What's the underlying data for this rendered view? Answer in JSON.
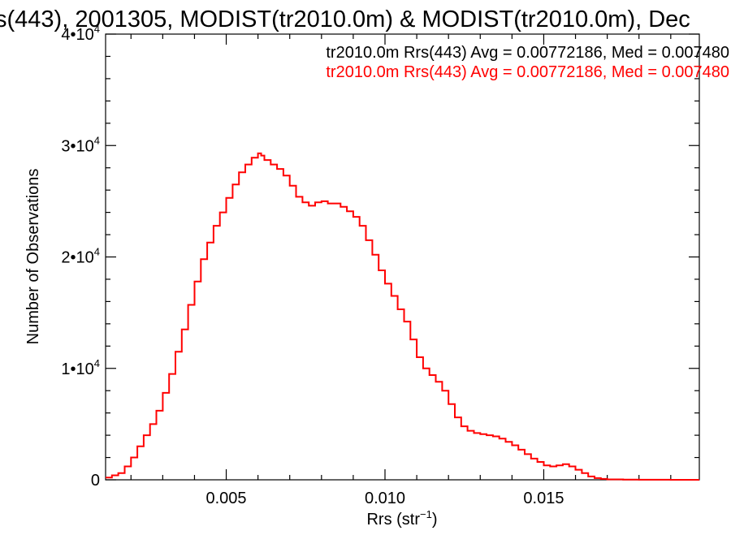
{
  "chart_data": {
    "type": "line",
    "style": "histogram-step",
    "title": "s(443), 2001305, MODIST(tr2010.0m) & MODIST(tr2010.0m), Dec",
    "xlabel": {
      "base": "Rrs (str",
      "sup": "−1",
      "end": ")"
    },
    "ylabel": "Number of Observations",
    "xlim": [
      0.0012,
      0.0199
    ],
    "ylim": [
      0,
      40000
    ],
    "x_ticks": [
      {
        "value": 0.005,
        "label": "0.005"
      },
      {
        "value": 0.01,
        "label": "0.010"
      },
      {
        "value": 0.015,
        "label": "0.015"
      }
    ],
    "y_ticks": [
      {
        "value": 0,
        "mant": "0",
        "exp": ""
      },
      {
        "value": 10000,
        "mant": "1•10",
        "exp": "4"
      },
      {
        "value": 20000,
        "mant": "2•10",
        "exp": "4"
      },
      {
        "value": 30000,
        "mant": "3•10",
        "exp": "4"
      },
      {
        "value": 40000,
        "mant": "4•10",
        "exp": "4"
      }
    ],
    "grid": false,
    "legend": [
      {
        "text": "tr2010.0m Rrs(443) Avg = 0.00772186, Med = 0.007480",
        "color": "#000000"
      },
      {
        "text": "tr2010.0m Rrs(443) Avg = 0.00772186, Med = 0.007480",
        "color": "#ff0000"
      }
    ],
    "legend_position": "top-right",
    "series": [
      {
        "color": "#ff0000",
        "x": [
          0.0012,
          0.0014,
          0.0016,
          0.0018,
          0.002,
          0.0022,
          0.0024,
          0.0026,
          0.0028,
          0.003,
          0.0032,
          0.0034,
          0.0036,
          0.0038,
          0.004,
          0.0042,
          0.0044,
          0.0046,
          0.0048,
          0.005,
          0.0052,
          0.0054,
          0.0056,
          0.0058,
          0.006,
          0.0061,
          0.0062,
          0.0064,
          0.0066,
          0.0068,
          0.007,
          0.0072,
          0.0074,
          0.0076,
          0.0078,
          0.008,
          0.0082,
          0.0084,
          0.0086,
          0.0088,
          0.009,
          0.0092,
          0.0094,
          0.0096,
          0.0098,
          0.01,
          0.0102,
          0.0104,
          0.0106,
          0.0108,
          0.011,
          0.0112,
          0.0114,
          0.0116,
          0.0118,
          0.012,
          0.0122,
          0.0124,
          0.0126,
          0.0128,
          0.013,
          0.0132,
          0.0134,
          0.0136,
          0.0138,
          0.014,
          0.0142,
          0.0144,
          0.0146,
          0.0148,
          0.015,
          0.0152,
          0.0154,
          0.0156,
          0.0158,
          0.016,
          0.0162,
          0.0164,
          0.0166,
          0.0168,
          0.017,
          0.0175,
          0.018,
          0.0185,
          0.019,
          0.0195,
          0.0199
        ],
        "y": [
          200,
          400,
          600,
          1200,
          2000,
          3000,
          4000,
          5000,
          6200,
          7800,
          9500,
          11500,
          13500,
          15700,
          17800,
          19800,
          21300,
          22800,
          24000,
          25300,
          26500,
          27600,
          28300,
          28900,
          29300,
          29100,
          28700,
          28300,
          27900,
          27300,
          26400,
          25400,
          24900,
          24600,
          24900,
          25000,
          24800,
          24800,
          24500,
          24100,
          23600,
          22800,
          21500,
          20200,
          18800,
          17600,
          16500,
          15300,
          14200,
          12600,
          11000,
          10000,
          9400,
          8800,
          8000,
          6800,
          5600,
          4800,
          4400,
          4200,
          4100,
          4000,
          3900,
          3700,
          3400,
          3100,
          2700,
          2300,
          1900,
          1600,
          1300,
          1200,
          1300,
          1400,
          1200,
          900,
          600,
          300,
          150,
          80,
          40,
          20,
          10,
          5,
          0,
          0,
          0
        ]
      }
    ]
  }
}
